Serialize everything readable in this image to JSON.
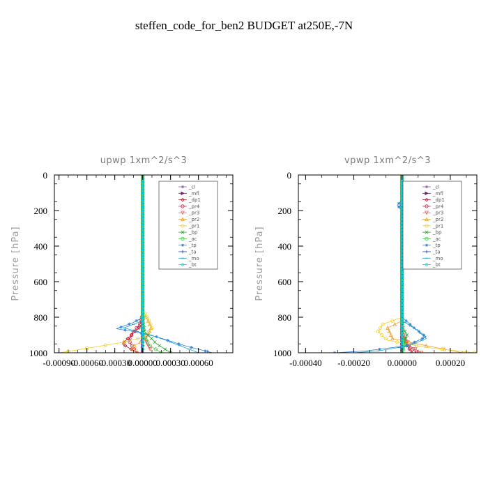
{
  "figure_title": "steffen_code_for_ben2  BUDGET at250E,-7N",
  "chart_data": [
    {
      "type": "line",
      "title": "upwp   1xm^2/s^3",
      "ylabel": "Pressure  [hPa]",
      "xlabel": "",
      "xlim": [
        -0.00095,
        0.00097
      ],
      "ylim": [
        1000,
        0
      ],
      "xticks": [
        -0.0009,
        -0.0006,
        -0.0003,
        0.0,
        0.0003,
        0.0006
      ],
      "xtick_labels": [
        "-0.00090",
        "-0.00060",
        "-0.00030",
        "0.00000",
        "0.00030",
        "0.00060"
      ],
      "yticks": [
        0,
        200,
        400,
        600,
        800,
        1000
      ],
      "ytick_labels": [
        "0",
        "200",
        "400",
        "600",
        "800",
        "1000"
      ],
      "legend_position": "top-right",
      "series": [
        {
          "name": "_cl",
          "color": "#8f5fb8",
          "marker": "star",
          "points": [
            [
              0,
              0
            ],
            [
              0,
              200
            ],
            [
              0,
              400
            ],
            [
              0,
              600
            ],
            [
              0,
              800
            ],
            [
              0,
              1000
            ]
          ]
        },
        {
          "name": "_mfl",
          "color": "#7a1f7a",
          "marker": "right",
          "points": [
            [
              0,
              0
            ],
            [
              0,
              200
            ],
            [
              0,
              400
            ],
            [
              0,
              600
            ],
            [
              0,
              800
            ],
            [
              0,
              1000
            ]
          ]
        },
        {
          "name": "_dp1",
          "color": "#b0182e",
          "marker": "diamond",
          "points": [
            [
              0,
              0
            ],
            [
              0,
              800
            ],
            [
              -2e-05,
              850
            ],
            [
              -0.00012,
              900
            ],
            [
              -0.00022,
              950
            ],
            [
              -6e-05,
              1000
            ]
          ]
        },
        {
          "name": "_pr4",
          "color": "#cc2040",
          "marker": "circle",
          "points": [
            [
              0,
              0
            ],
            [
              0,
              780
            ],
            [
              -3e-05,
              840
            ],
            [
              -0.0001,
              880
            ],
            [
              -0.00015,
              930
            ],
            [
              -8e-05,
              990
            ]
          ]
        },
        {
          "name": "_pr3",
          "color": "#e8605a",
          "marker": "tri-down",
          "points": [
            [
              0,
              0
            ],
            [
              0,
              850
            ],
            [
              2e-05,
              920
            ],
            [
              8e-05,
              980
            ]
          ]
        },
        {
          "name": "_pr2",
          "color": "#f0a030",
          "marker": "tri-up",
          "points": [
            [
              0,
              0
            ],
            [
              0,
              780
            ],
            [
              6e-05,
              820
            ],
            [
              9e-05,
              860
            ],
            [
              4e-05,
              920
            ],
            [
              -0.00012,
              970
            ],
            [
              -5e-05,
              1000
            ]
          ]
        },
        {
          "name": "_pr1",
          "color": "#f5d020",
          "marker": "circle",
          "points": [
            [
              0,
              0
            ],
            [
              0,
              760
            ],
            [
              5e-05,
              800
            ],
            [
              0.0001,
              860
            ],
            [
              2e-05,
              910
            ],
            [
              -0.0002,
              940
            ],
            [
              -0.0006,
              975
            ],
            [
              -0.0009,
              1000
            ]
          ]
        },
        {
          "name": "_bp",
          "color": "#28a828",
          "marker": "x",
          "points": [
            [
              0,
              0
            ],
            [
              0,
              800
            ],
            [
              2e-05,
              880
            ],
            [
              0.00015,
              950
            ],
            [
              0.0003,
              1000
            ]
          ]
        },
        {
          "name": "_ac",
          "color": "#4cc84c",
          "marker": "circle",
          "points": [
            [
              0,
              0
            ],
            [
              0,
              900
            ],
            [
              8e-05,
              960
            ],
            [
              0.0002,
              1000
            ]
          ]
        },
        {
          "name": "_tp",
          "color": "#3080d8",
          "marker": "star",
          "points": [
            [
              0,
              0
            ],
            [
              0,
              800
            ],
            [
              -0.0001,
              830
            ],
            [
              -0.00028,
              865
            ],
            [
              -0.0001,
              880
            ],
            [
              0.00015,
              910
            ],
            [
              0.00045,
              960
            ],
            [
              0.00075,
              1000
            ]
          ]
        },
        {
          "name": "_ta",
          "color": "#2040a0",
          "marker": "plus",
          "points": [
            [
              0,
              0
            ],
            [
              0,
              1000
            ]
          ]
        },
        {
          "name": "_mo",
          "color": "#20a0c8",
          "marker": "dash",
          "points": [
            [
              0,
              0
            ],
            [
              0,
              820
            ],
            [
              -0.0002,
              860
            ],
            [
              0.00015,
              910
            ],
            [
              0.0004,
              960
            ],
            [
              0.0006,
              1000
            ]
          ]
        },
        {
          "name": "_bt",
          "color": "#00e0e0",
          "marker": "diamond",
          "points": [
            [
              0,
              0
            ],
            [
              0,
              1000
            ]
          ]
        }
      ]
    },
    {
      "type": "line",
      "title": "vpwp   1xm^2/s^3",
      "ylabel": "Pressure  [hPa]",
      "xlabel": "",
      "xlim": [
        -0.00043,
        0.00031
      ],
      "ylim": [
        1000,
        0
      ],
      "xticks": [
        -0.0004,
        -0.0002,
        0.0,
        0.0002
      ],
      "xtick_labels": [
        "-0.00040",
        "-0.00020",
        "0.00000",
        "0.00020"
      ],
      "yticks": [
        0,
        200,
        400,
        600,
        800,
        1000
      ],
      "ytick_labels": [
        "0",
        "200",
        "400",
        "600",
        "800",
        "1000"
      ],
      "legend_position": "top-right",
      "series": [
        {
          "name": "_cl",
          "color": "#8f5fb8",
          "marker": "star",
          "points": [
            [
              0,
              0
            ],
            [
              0,
              200
            ],
            [
              0,
              400
            ],
            [
              0,
              600
            ],
            [
              0,
              800
            ],
            [
              0,
              1000
            ]
          ]
        },
        {
          "name": "_mfl",
          "color": "#7a1f7a",
          "marker": "right",
          "points": [
            [
              0,
              0
            ],
            [
              0,
              200
            ],
            [
              0,
              400
            ],
            [
              0,
              600
            ],
            [
              0,
              800
            ],
            [
              0,
              1000
            ]
          ]
        },
        {
          "name": "_dp1",
          "color": "#b0182e",
          "marker": "diamond",
          "points": [
            [
              0,
              0
            ],
            [
              0,
              900
            ],
            [
              2e-05,
              960
            ],
            [
              4e-05,
              1000
            ]
          ]
        },
        {
          "name": "_pr4",
          "color": "#cc2040",
          "marker": "circle",
          "points": [
            [
              0,
              0
            ],
            [
              0,
              880
            ],
            [
              2e-05,
              950
            ],
            [
              6e-05,
              1000
            ]
          ]
        },
        {
          "name": "_pr3",
          "color": "#e8605a",
          "marker": "tri-down",
          "points": [
            [
              0,
              0
            ],
            [
              0,
              900
            ],
            [
              3e-05,
              960
            ],
            [
              8e-05,
              1000
            ]
          ]
        },
        {
          "name": "_pr2",
          "color": "#f0a030",
          "marker": "tri-up",
          "points": [
            [
              0,
              0
            ],
            [
              0,
              300
            ],
            [
              0,
              820
            ],
            [
              -6e-05,
              860
            ],
            [
              -4e-05,
              920
            ],
            [
              0.0001,
              960
            ],
            [
              0.00025,
              1000
            ]
          ]
        },
        {
          "name": "_pr1",
          "color": "#f5d020",
          "marker": "circle",
          "points": [
            [
              0,
              0
            ],
            [
              0,
              800
            ],
            [
              -8e-05,
              840
            ],
            [
              -0.0001,
              880
            ],
            [
              -6e-05,
              930
            ],
            [
              0.0001,
              970
            ],
            [
              0.0003,
              1000
            ]
          ]
        },
        {
          "name": "_bp",
          "color": "#28a828",
          "marker": "x",
          "points": [
            [
              0,
              0
            ],
            [
              0,
              850
            ],
            [
              2e-05,
              900
            ],
            [
              1e-05,
              950
            ],
            [
              0,
              1000
            ]
          ]
        },
        {
          "name": "_ac",
          "color": "#4cc84c",
          "marker": "circle",
          "points": [
            [
              0,
              0
            ],
            [
              0,
              900
            ],
            [
              1e-05,
              950
            ],
            [
              0,
              1000
            ]
          ]
        },
        {
          "name": "_tp",
          "color": "#3080d8",
          "marker": "star",
          "points": [
            [
              0,
              0
            ],
            [
              0,
              140
            ],
            [
              -2e-05,
              170
            ],
            [
              0,
              200
            ],
            [
              0,
              800
            ],
            [
              5e-05,
              860
            ],
            [
              0.0001,
              910
            ],
            [
              2e-05,
              960
            ],
            [
              -0.00015,
              990
            ],
            [
              -0.00028,
              1000
            ]
          ]
        },
        {
          "name": "_ta",
          "color": "#2040a0",
          "marker": "plus",
          "points": [
            [
              0,
              0
            ],
            [
              0,
              1000
            ]
          ]
        },
        {
          "name": "_mo",
          "color": "#20a0c8",
          "marker": "dash",
          "points": [
            [
              0,
              0
            ],
            [
              0,
              150
            ],
            [
              -1e-05,
              175
            ],
            [
              0,
              200
            ],
            [
              0,
              820
            ],
            [
              6e-05,
              870
            ],
            [
              0.0001,
              920
            ],
            [
              3e-05,
              960
            ],
            [
              -0.0001,
              990
            ],
            [
              -0.0002,
              1000
            ]
          ]
        },
        {
          "name": "_bt",
          "color": "#00e0e0",
          "marker": "diamond",
          "points": [
            [
              0,
              0
            ],
            [
              0,
              1000
            ]
          ]
        }
      ]
    }
  ]
}
